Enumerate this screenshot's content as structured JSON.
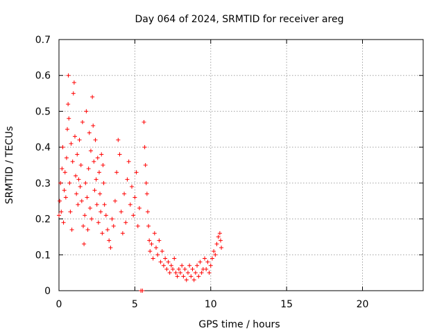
{
  "chart_data": {
    "type": "scatter",
    "title": "Day 064 of 2024, SRMTID for receiver areg",
    "xlabel": "GPS time / hours",
    "ylabel": "SRMTID / TECUs",
    "xlim": [
      0,
      24
    ],
    "ylim": [
      0,
      0.7
    ],
    "xticks": [
      0,
      5,
      10,
      15,
      20
    ],
    "yticks": [
      0,
      0.1,
      0.2,
      0.3,
      0.4,
      0.5,
      0.6,
      0.7
    ],
    "xtick_labels": [
      "0",
      "5",
      "10",
      "15",
      "20"
    ],
    "ytick_labels": [
      "0",
      "0.1",
      "0.2",
      "0.3",
      "0.4",
      "0.5",
      "0.6",
      "0.7"
    ],
    "grid": true,
    "marker": "+",
    "color": "#ff0000",
    "series": [
      {
        "name": "SRMTID",
        "points": [
          [
            0.0,
            0.21
          ],
          [
            0.05,
            0.25
          ],
          [
            0.1,
            0.3
          ],
          [
            0.15,
            0.22
          ],
          [
            0.2,
            0.34
          ],
          [
            0.25,
            0.4
          ],
          [
            0.3,
            0.19
          ],
          [
            0.35,
            0.28
          ],
          [
            0.4,
            0.33
          ],
          [
            0.45,
            0.26
          ],
          [
            0.5,
            0.37
          ],
          [
            0.55,
            0.45
          ],
          [
            0.6,
            0.52
          ],
          [
            0.62,
            0.6
          ],
          [
            0.65,
            0.48
          ],
          [
            0.7,
            0.3
          ],
          [
            0.75,
            0.22
          ],
          [
            0.8,
            0.41
          ],
          [
            0.85,
            0.17
          ],
          [
            0.9,
            0.36
          ],
          [
            0.95,
            0.55
          ],
          [
            1.0,
            0.58
          ],
          [
            1.05,
            0.43
          ],
          [
            1.1,
            0.32
          ],
          [
            1.15,
            0.27
          ],
          [
            1.2,
            0.38
          ],
          [
            1.25,
            0.24
          ],
          [
            1.3,
            0.31
          ],
          [
            1.35,
            0.42
          ],
          [
            1.4,
            0.29
          ],
          [
            1.45,
            0.35
          ],
          [
            1.5,
            0.25
          ],
          [
            1.55,
            0.47
          ],
          [
            1.6,
            0.18
          ],
          [
            1.65,
            0.13
          ],
          [
            1.7,
            0.21
          ],
          [
            1.75,
            0.3
          ],
          [
            1.8,
            0.5
          ],
          [
            1.85,
            0.26
          ],
          [
            1.9,
            0.17
          ],
          [
            1.95,
            0.34
          ],
          [
            2.0,
            0.44
          ],
          [
            2.05,
            0.23
          ],
          [
            2.1,
            0.39
          ],
          [
            2.15,
            0.2
          ],
          [
            2.2,
            0.54
          ],
          [
            2.25,
            0.46
          ],
          [
            2.3,
            0.36
          ],
          [
            2.35,
            0.28
          ],
          [
            2.4,
            0.42
          ],
          [
            2.45,
            0.31
          ],
          [
            2.5,
            0.24
          ],
          [
            2.55,
            0.37
          ],
          [
            2.6,
            0.19
          ],
          [
            2.65,
            0.33
          ],
          [
            2.7,
            0.27
          ],
          [
            2.75,
            0.22
          ],
          [
            2.8,
            0.38
          ],
          [
            2.85,
            0.16
          ],
          [
            2.9,
            0.35
          ],
          [
            2.95,
            0.3
          ],
          [
            3.0,
            0.24
          ],
          [
            3.1,
            0.21
          ],
          [
            3.2,
            0.17
          ],
          [
            3.3,
            0.14
          ],
          [
            3.4,
            0.12
          ],
          [
            3.5,
            0.2
          ],
          [
            3.6,
            0.18
          ],
          [
            3.7,
            0.25
          ],
          [
            3.8,
            0.33
          ],
          [
            3.9,
            0.42
          ],
          [
            4.0,
            0.38
          ],
          [
            4.1,
            0.22
          ],
          [
            4.2,
            0.16
          ],
          [
            4.3,
            0.27
          ],
          [
            4.4,
            0.19
          ],
          [
            4.5,
            0.31
          ],
          [
            4.6,
            0.36
          ],
          [
            4.7,
            0.24
          ],
          [
            4.8,
            0.29
          ],
          [
            4.9,
            0.21
          ],
          [
            5.0,
            0.26
          ],
          [
            5.1,
            0.33
          ],
          [
            5.2,
            0.18
          ],
          [
            5.3,
            0.23
          ],
          [
            5.4,
            0.0
          ],
          [
            5.5,
            0.0
          ],
          [
            5.6,
            0.47
          ],
          [
            5.65,
            0.4
          ],
          [
            5.7,
            0.35
          ],
          [
            5.75,
            0.3
          ],
          [
            5.8,
            0.27
          ],
          [
            5.85,
            0.22
          ],
          [
            5.9,
            0.18
          ],
          [
            5.95,
            0.14
          ],
          [
            6.0,
            0.11
          ],
          [
            6.1,
            0.13
          ],
          [
            6.2,
            0.09
          ],
          [
            6.3,
            0.16
          ],
          [
            6.4,
            0.12
          ],
          [
            6.5,
            0.1
          ],
          [
            6.6,
            0.14
          ],
          [
            6.7,
            0.08
          ],
          [
            6.8,
            0.11
          ],
          [
            6.9,
            0.07
          ],
          [
            7.0,
            0.09
          ],
          [
            7.1,
            0.06
          ],
          [
            7.2,
            0.08
          ],
          [
            7.3,
            0.05
          ],
          [
            7.4,
            0.07
          ],
          [
            7.5,
            0.06
          ],
          [
            7.6,
            0.09
          ],
          [
            7.7,
            0.05
          ],
          [
            7.8,
            0.04
          ],
          [
            7.9,
            0.06
          ],
          [
            8.0,
            0.05
          ],
          [
            8.1,
            0.07
          ],
          [
            8.2,
            0.04
          ],
          [
            8.3,
            0.06
          ],
          [
            8.4,
            0.03
          ],
          [
            8.5,
            0.05
          ],
          [
            8.6,
            0.07
          ],
          [
            8.7,
            0.04
          ],
          [
            8.8,
            0.06
          ],
          [
            8.9,
            0.03
          ],
          [
            9.0,
            0.05
          ],
          [
            9.1,
            0.07
          ],
          [
            9.2,
            0.04
          ],
          [
            9.3,
            0.08
          ],
          [
            9.4,
            0.05
          ],
          [
            9.5,
            0.06
          ],
          [
            9.6,
            0.09
          ],
          [
            9.7,
            0.06
          ],
          [
            9.8,
            0.08
          ],
          [
            9.9,
            0.05
          ],
          [
            10.0,
            0.07
          ],
          [
            10.1,
            0.09
          ],
          [
            10.2,
            0.11
          ],
          [
            10.3,
            0.1
          ],
          [
            10.4,
            0.13
          ],
          [
            10.5,
            0.15
          ],
          [
            10.6,
            0.16
          ],
          [
            10.65,
            0.14
          ],
          [
            10.7,
            0.12
          ]
        ]
      }
    ]
  }
}
